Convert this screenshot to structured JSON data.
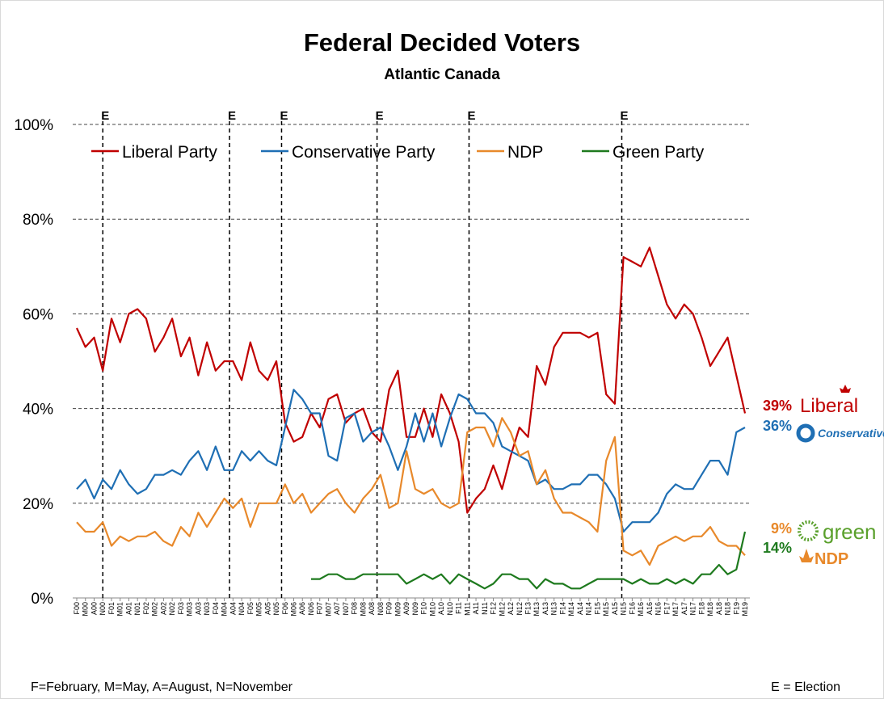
{
  "chart_data": {
    "type": "line",
    "title": "Federal Decided Voters",
    "subtitle": "Atlantic Canada",
    "categories": [
      "F00",
      "M00",
      "A00",
      "N00",
      "F01",
      "M01",
      "A01",
      "N01",
      "F02",
      "M02",
      "A02",
      "N02",
      "F03",
      "M03",
      "A03",
      "N03",
      "F04",
      "M04",
      "A04",
      "N04",
      "F05",
      "M05",
      "A05",
      "N05",
      "F06",
      "M06",
      "A06",
      "N06",
      "F07",
      "M07",
      "A07",
      "N07",
      "F08",
      "M08",
      "A08",
      "N08",
      "F09",
      "M09",
      "A09",
      "N09",
      "F10",
      "M10",
      "A10",
      "N10",
      "F11",
      "M11",
      "A11",
      "N11",
      "F12",
      "M12",
      "A12",
      "N12",
      "F13",
      "M13",
      "A13",
      "N13",
      "F14",
      "M14",
      "A14",
      "N14",
      "F15",
      "M15",
      "A15",
      "N15",
      "F16",
      "M16",
      "A16",
      "N16",
      "F17",
      "M17",
      "A17",
      "N17",
      "F18",
      "M18",
      "A18",
      "N18",
      "F19",
      "M19"
    ],
    "series": [
      {
        "name": "Liberal Party",
        "color": "#c00000",
        "end_label": "39%",
        "logo": "Liberal",
        "values": [
          57,
          53,
          55,
          48,
          59,
          54,
          60,
          61,
          59,
          52,
          55,
          59,
          51,
          55,
          47,
          54,
          48,
          50,
          50,
          46,
          54,
          48,
          46,
          50,
          37,
          33,
          34,
          39,
          36,
          42,
          43,
          37,
          39,
          40,
          35,
          33,
          44,
          48,
          34,
          34,
          40,
          34,
          43,
          39,
          33,
          18,
          21,
          23,
          28,
          23,
          30,
          36,
          34,
          49,
          45,
          53,
          56,
          56,
          56,
          55,
          56,
          43,
          41,
          72,
          71,
          70,
          74,
          68,
          62,
          59,
          62,
          60,
          55,
          49,
          52,
          55,
          47,
          39
        ]
      },
      {
        "name": "Conservative Party",
        "color": "#1f6fb4",
        "end_label": "36%",
        "logo": "Conservative",
        "values": [
          23,
          25,
          21,
          25,
          23,
          27,
          24,
          22,
          23,
          26,
          26,
          27,
          26,
          29,
          31,
          27,
          32,
          27,
          27,
          31,
          29,
          31,
          29,
          28,
          36,
          44,
          42,
          39,
          39,
          30,
          29,
          38,
          39,
          33,
          35,
          36,
          32,
          27,
          32,
          39,
          33,
          39,
          32,
          38,
          43,
          42,
          39,
          39,
          37,
          32,
          31,
          30,
          29,
          24,
          25,
          23,
          23,
          24,
          24,
          26,
          26,
          24,
          21,
          14,
          16,
          16,
          16,
          18,
          22,
          24,
          23,
          23,
          26,
          29,
          29,
          26,
          35,
          36
        ]
      },
      {
        "name": "NDP",
        "color": "#e8892b",
        "end_label": "9%",
        "logo": "NDP",
        "values": [
          16,
          14,
          14,
          16,
          11,
          13,
          12,
          13,
          13,
          14,
          12,
          11,
          15,
          13,
          18,
          15,
          18,
          21,
          19,
          21,
          15,
          20,
          20,
          20,
          24,
          20,
          22,
          18,
          20,
          22,
          23,
          20,
          18,
          21,
          23,
          26,
          19,
          20,
          31,
          23,
          22,
          23,
          20,
          19,
          20,
          35,
          36,
          36,
          32,
          38,
          35,
          30,
          31,
          24,
          27,
          21,
          18,
          18,
          17,
          16,
          14,
          29,
          34,
          10,
          9,
          10,
          7,
          11,
          12,
          13,
          12,
          13,
          13,
          15,
          12,
          11,
          11,
          9
        ]
      },
      {
        "name": "Green Party",
        "color": "#1e7a1e",
        "end_label": "14%",
        "logo": "green",
        "values": [
          null,
          null,
          null,
          null,
          null,
          null,
          null,
          null,
          null,
          null,
          null,
          null,
          null,
          null,
          null,
          null,
          null,
          null,
          null,
          null,
          null,
          null,
          null,
          null,
          null,
          null,
          null,
          4,
          4,
          5,
          5,
          4,
          4,
          5,
          5,
          5,
          5,
          5,
          3,
          4,
          5,
          4,
          5,
          3,
          5,
          4,
          3,
          2,
          3,
          5,
          5,
          4,
          4,
          2,
          4,
          3,
          3,
          2,
          2,
          3,
          4,
          4,
          4,
          4,
          3,
          4,
          3,
          3,
          4,
          3,
          4,
          3,
          5,
          5,
          7,
          5,
          6,
          14
        ]
      }
    ],
    "ylim": [
      0,
      100
    ],
    "yticks": [
      {
        "value": 0,
        "label": "0%"
      },
      {
        "value": 20,
        "label": "20%"
      },
      {
        "value": 40,
        "label": "40%"
      },
      {
        "value": 60,
        "label": "60%"
      },
      {
        "value": 80,
        "label": "80%"
      },
      {
        "value": 100,
        "label": "100%"
      }
    ],
    "grid": true,
    "legend": "top",
    "elections": [
      {
        "x": 3,
        "label": "E"
      },
      {
        "x": 17.6,
        "label": "E"
      },
      {
        "x": 23.6,
        "label": "E"
      },
      {
        "x": 34.6,
        "label": "E"
      },
      {
        "x": 45.2,
        "label": "E"
      },
      {
        "x": 62.8,
        "label": "E"
      }
    ],
    "footnote_left": "F=February, M=May, A=August, N=November",
    "footnote_right": "E = Election"
  }
}
